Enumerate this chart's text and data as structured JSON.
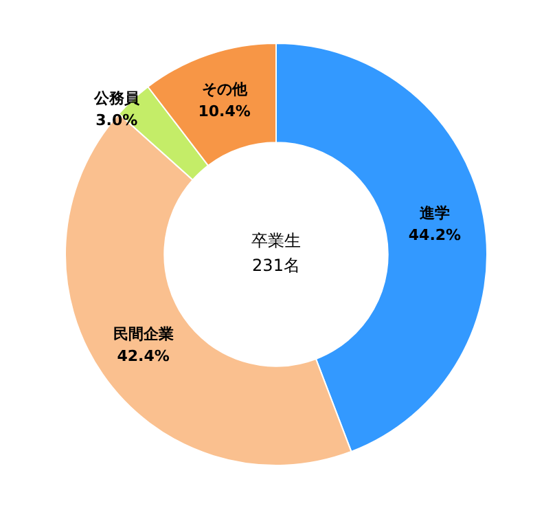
{
  "chart_data": {
    "type": "donut",
    "categories": [
      "進学",
      "民間企業",
      "公務員",
      "その他"
    ],
    "values": [
      44.2,
      42.4,
      3.0,
      10.4
    ],
    "colors": [
      "#3399ff",
      "#fac08f",
      "#c4ed68",
      "#f79646"
    ],
    "value_labels": [
      "44.2%",
      "42.4%",
      "3.0%",
      "10.4%"
    ],
    "annotations": [
      "卒業生\n231名"
    ]
  }
}
